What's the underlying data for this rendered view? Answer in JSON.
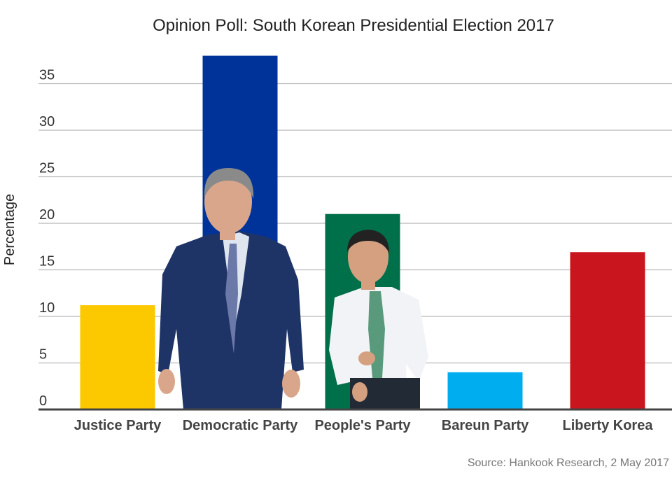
{
  "chart_data": {
    "type": "bar",
    "title": "Opinion Poll: South Korean Presidential Election 2017",
    "ylabel": "Percentage",
    "xlabel": "",
    "categories": [
      "Justice Party",
      "Democratic Party",
      "People's Party",
      "Bareun Party",
      "Liberty Korea"
    ],
    "values": [
      11.2,
      38.0,
      21.0,
      4.0,
      16.9
    ],
    "colors": [
      "#fcc800",
      "#003399",
      "#00704a",
      "#00aeef",
      "#c9151e"
    ],
    "ylim": [
      0,
      38
    ],
    "yticks": [
      0,
      5,
      10,
      15,
      20,
      25,
      30,
      35
    ],
    "grid": true,
    "legend": "none",
    "source": "Source: Hankook Research, 2 May 2017"
  }
}
